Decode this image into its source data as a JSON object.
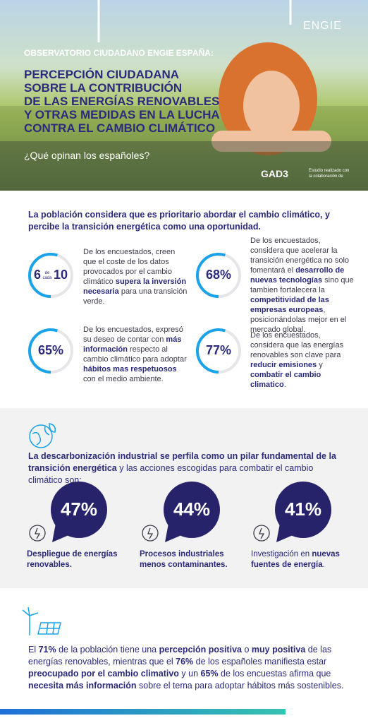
{
  "header": {
    "logo": "ENGIE",
    "kicker": "OBSERVATORIO CIUDADANO ENGIE ESPAÑA:",
    "title_lines": [
      "PERCEPCIÓN CIUDADANA",
      "SOBRE LA CONTRIBUCIÓN",
      "DE LAS ENERGÍAS RENOVABLES",
      "Y OTRAS MEDIDAS EN LA LUCHA",
      "CONTRA EL CAMBIO CLIMÁTICO"
    ],
    "subtitle": "¿Qué opinan los españoles?",
    "partner": "GAD3",
    "partner_note_lines": [
      "Estudio realizado con",
      "la colaboración de"
    ]
  },
  "intro": "La población considera que es prioritario abordar el cambio climático, y percibe la transición energética como una oportunidad.",
  "stats": [
    {
      "figure": [
        "6",
        "de cada",
        "10"
      ],
      "text": [
        {
          "text": "De los encuestados, creen que el coste de los datos provocados por el cambio climático "
        },
        {
          "text": "supera la inversión necesaria",
          "bold": true
        },
        {
          "text": " para una transición verde."
        }
      ]
    },
    {
      "figure": [
        "68%"
      ],
      "text": [
        {
          "text": "De los encuestados, considera que acelerar la transición energética no solo fomentará el "
        },
        {
          "text": "desarrollo de nuevas tecnologías",
          "bold": true
        },
        {
          "text": " sino que tambien fortalecera la "
        },
        {
          "text": "competitividad de las empresas europeas",
          "bold": true
        },
        {
          "text": ", posicionándolas mejor en el mercado global."
        }
      ]
    },
    {
      "figure": [
        "65%"
      ],
      "text": [
        {
          "text": "De los encuestados, expresó su deseo de contar con "
        },
        {
          "text": "más información",
          "bold": true
        },
        {
          "text": " respecto al cambio climático para adoptar "
        },
        {
          "text": "hábitos mas respetuosos",
          "bold": true
        },
        {
          "text": " con el medio ambiente."
        }
      ]
    },
    {
      "figure": [
        "77%"
      ],
      "text": [
        {
          "text": "De los encuestados, considera que las energías renovables son clave para "
        },
        {
          "text": "reducir emisiones",
          "bold": true
        },
        {
          "text": " y "
        },
        {
          "text": "combatir el cambio climatico",
          "bold": true
        },
        {
          "text": "."
        }
      ]
    }
  ],
  "decarbonization": {
    "intro": [
      {
        "text": "La descarbonización industrial se perfila como un pilar fundamental de la transición energética",
        "bold": true
      },
      {
        "text": " y las acciones escogidas para combatir el cambio climático son:"
      }
    ],
    "items": [
      {
        "value": "47%",
        "label": [
          {
            "text": "Despliegue de energías renovables.",
            "bold": true
          }
        ]
      },
      {
        "value": "44%",
        "label": [
          {
            "text": "Procesos industriales menos contaminantes.",
            "bold": true
          }
        ]
      },
      {
        "value": "41%",
        "label": [
          {
            "text": "Investigación en "
          },
          {
            "text": "nuevas fuentes de energía",
            "bold": true
          },
          {
            "text": "."
          }
        ]
      }
    ]
  },
  "summary": [
    {
      "text": "El "
    },
    {
      "text": "71%",
      "bold": true
    },
    {
      "text": " de la población tiene una "
    },
    {
      "text": "percepción positiva",
      "bold": true
    },
    {
      "text": " o "
    },
    {
      "text": "muy positiva",
      "bold": true
    },
    {
      "text": " de las energías renovables, mientras que el "
    },
    {
      "text": "76%",
      "bold": true
    },
    {
      "text": " de los españoles manifiesta estar "
    },
    {
      "text": "preocupado por el cambio climativo",
      "bold": true
    },
    {
      "text": " y un "
    },
    {
      "text": "65%",
      "bold": true
    },
    {
      "text": " de los encuestas afirma que "
    },
    {
      "text": "necesita más información",
      "bold": true
    },
    {
      "text": " sobre el tema para adoptar hábitos más sostenibles."
    }
  ]
}
